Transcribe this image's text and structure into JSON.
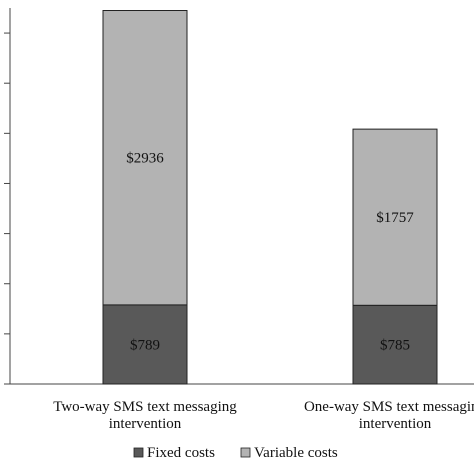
{
  "chart_data": {
    "type": "bar",
    "stacked": true,
    "categories": [
      [
        "Two-way SMS text messaging",
        "intervention"
      ],
      [
        "One-way SMS text messaging",
        "intervention"
      ]
    ],
    "series": [
      {
        "name": "Fixed costs",
        "values": [
          789,
          785
        ],
        "labels": [
          "$789",
          "$785"
        ],
        "color": "#595959"
      },
      {
        "name": "Variable costs",
        "values": [
          2936,
          1757
        ],
        "labels": [
          "$2936",
          "$1757"
        ],
        "color": "#b3b3b3"
      }
    ],
    "ylim": [
      0,
      3750
    ],
    "grid": false,
    "legend": "bottom"
  }
}
